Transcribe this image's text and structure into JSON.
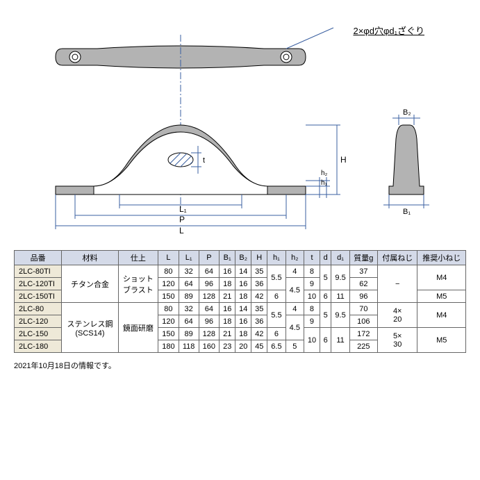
{
  "annotation_label": "2×φd穴φd₁ざぐり",
  "dim_labels": {
    "L": "L",
    "L1": "L₁",
    "P": "P",
    "B1": "B₁",
    "B2": "B₂",
    "H": "H",
    "h1": "h₁",
    "h2": "h₂",
    "t": "t"
  },
  "footer_note": "2021年10月18日の情報です。",
  "table": {
    "headers": [
      "品番",
      "材料",
      "仕上",
      "L",
      "L₁",
      "P",
      "B₁",
      "B₂",
      "H",
      "h₁",
      "h₂",
      "t",
      "d",
      "d₁",
      "質量g",
      "付属ねじ",
      "推奨小ねじ"
    ],
    "header_bg": "#d4dae8",
    "pn_bg": "#eee9d8",
    "groups": [
      {
        "material": "チタン合金",
        "finish": "ショット\nブラスト",
        "attached_screw": "−",
        "rows": [
          {
            "pn": "2LC-80TI",
            "L": "80",
            "L1": "32",
            "P": "64",
            "B1": "16",
            "B2": "14",
            "H": "35",
            "h1": "5.5",
            "h2": "4",
            "t": "8",
            "d": "5",
            "d1": "9.5",
            "mass": "37",
            "rec": "M4"
          },
          {
            "pn": "2LC-120TI",
            "L": "120",
            "L1": "64",
            "P": "96",
            "B1": "18",
            "B2": "16",
            "H": "36",
            "h1": "5.5",
            "h2": "4.5",
            "t": "9",
            "d": "5",
            "d1": "9.5",
            "mass": "62",
            "rec": "M4"
          },
          {
            "pn": "2LC-150TI",
            "L": "150",
            "L1": "89",
            "P": "128",
            "B1": "21",
            "B2": "18",
            "H": "42",
            "h1": "6",
            "h2": "4.5",
            "t": "10",
            "d": "6",
            "d1": "11",
            "mass": "96",
            "rec": "M5"
          }
        ]
      },
      {
        "material": "ステンレス鋼\n(SCS14)",
        "finish": "鏡面研磨",
        "rows": [
          {
            "pn": "2LC-80",
            "L": "80",
            "L1": "32",
            "P": "64",
            "B1": "16",
            "B2": "14",
            "H": "35",
            "h1": "5.5",
            "h2": "4",
            "t": "8",
            "d": "5",
            "d1": "9.5",
            "mass": "70",
            "att": "4×\n20",
            "rec": "M4"
          },
          {
            "pn": "2LC-120",
            "L": "120",
            "L1": "64",
            "P": "96",
            "B1": "18",
            "B2": "16",
            "H": "36",
            "h1": "5.5",
            "h2": "4.5",
            "t": "9",
            "d": "5",
            "d1": "9.5",
            "mass": "106",
            "att": "4×\n20",
            "rec": "M4"
          },
          {
            "pn": "2LC-150",
            "L": "150",
            "L1": "89",
            "P": "128",
            "B1": "21",
            "B2": "18",
            "H": "42",
            "h1": "6",
            "h2": "4.5",
            "t": "10",
            "d": "6",
            "d1": "11",
            "mass": "172",
            "att": "5×\n30",
            "rec": "M5"
          },
          {
            "pn": "2LC-180",
            "L": "180",
            "L1": "118",
            "P": "160",
            "B1": "23",
            "B2": "20",
            "H": "45",
            "h1": "6.5",
            "h2": "5",
            "t": "10",
            "d": "6",
            "d1": "11",
            "mass": "225",
            "att": "5×\n30",
            "rec": "M5"
          }
        ]
      }
    ]
  },
  "svg": {
    "fill": "#b3b3b3",
    "stroke": "#000",
    "thin": "#3a5fa0",
    "hatch": "#3a5fa0"
  }
}
